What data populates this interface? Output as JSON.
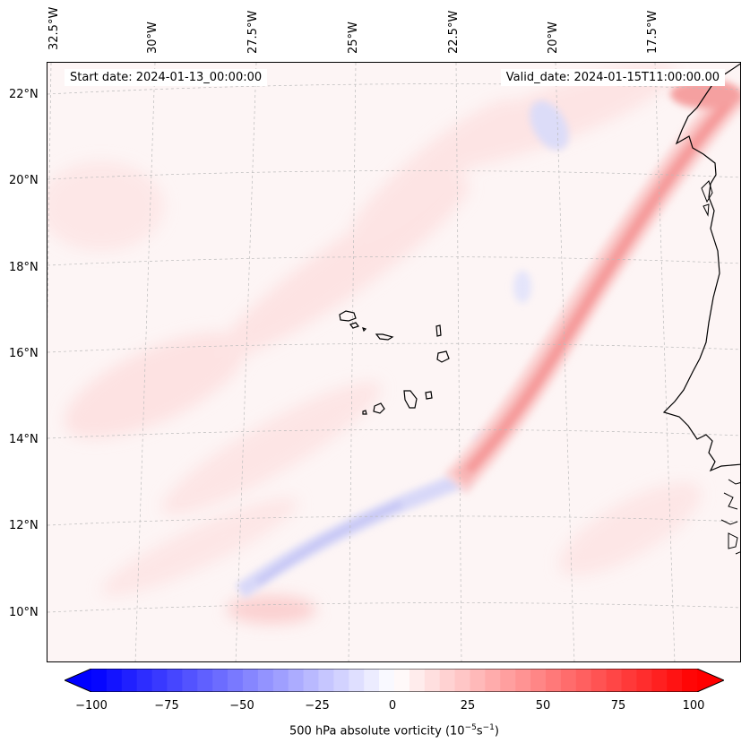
{
  "info": {
    "start_date": "Start date: 2024-01-13_00:00:00",
    "valid_date": "Valid_date: 2024-01-15T11:00:00.00"
  },
  "map": {
    "lon_labels": [
      "32.5°W",
      "30°W",
      "27.5°W",
      "25°W",
      "22.5°W",
      "20°W",
      "17.5°W"
    ],
    "lat_labels": [
      "22°N",
      "20°N",
      "18°N",
      "16°N",
      "14°N",
      "12°N",
      "10°N"
    ],
    "gridlines": "dashed",
    "field": "vorticity shading with a strong positive band (SW-NE) and weak negative streak",
    "coastline_color": "#000000"
  },
  "colorbar": {
    "ticks": [
      "−100",
      "−75",
      "−50",
      "−25",
      "0",
      "25",
      "50",
      "75",
      "100"
    ],
    "label": "500 hPa absolute vorticity (10",
    "label_exp1": "−5",
    "label_mid": "s",
    "label_exp2": "−1",
    "label_end": ")",
    "min_color": "#0000ff",
    "mid_color": "#ffffff",
    "max_color": "#ff0000",
    "extend": "both"
  }
}
